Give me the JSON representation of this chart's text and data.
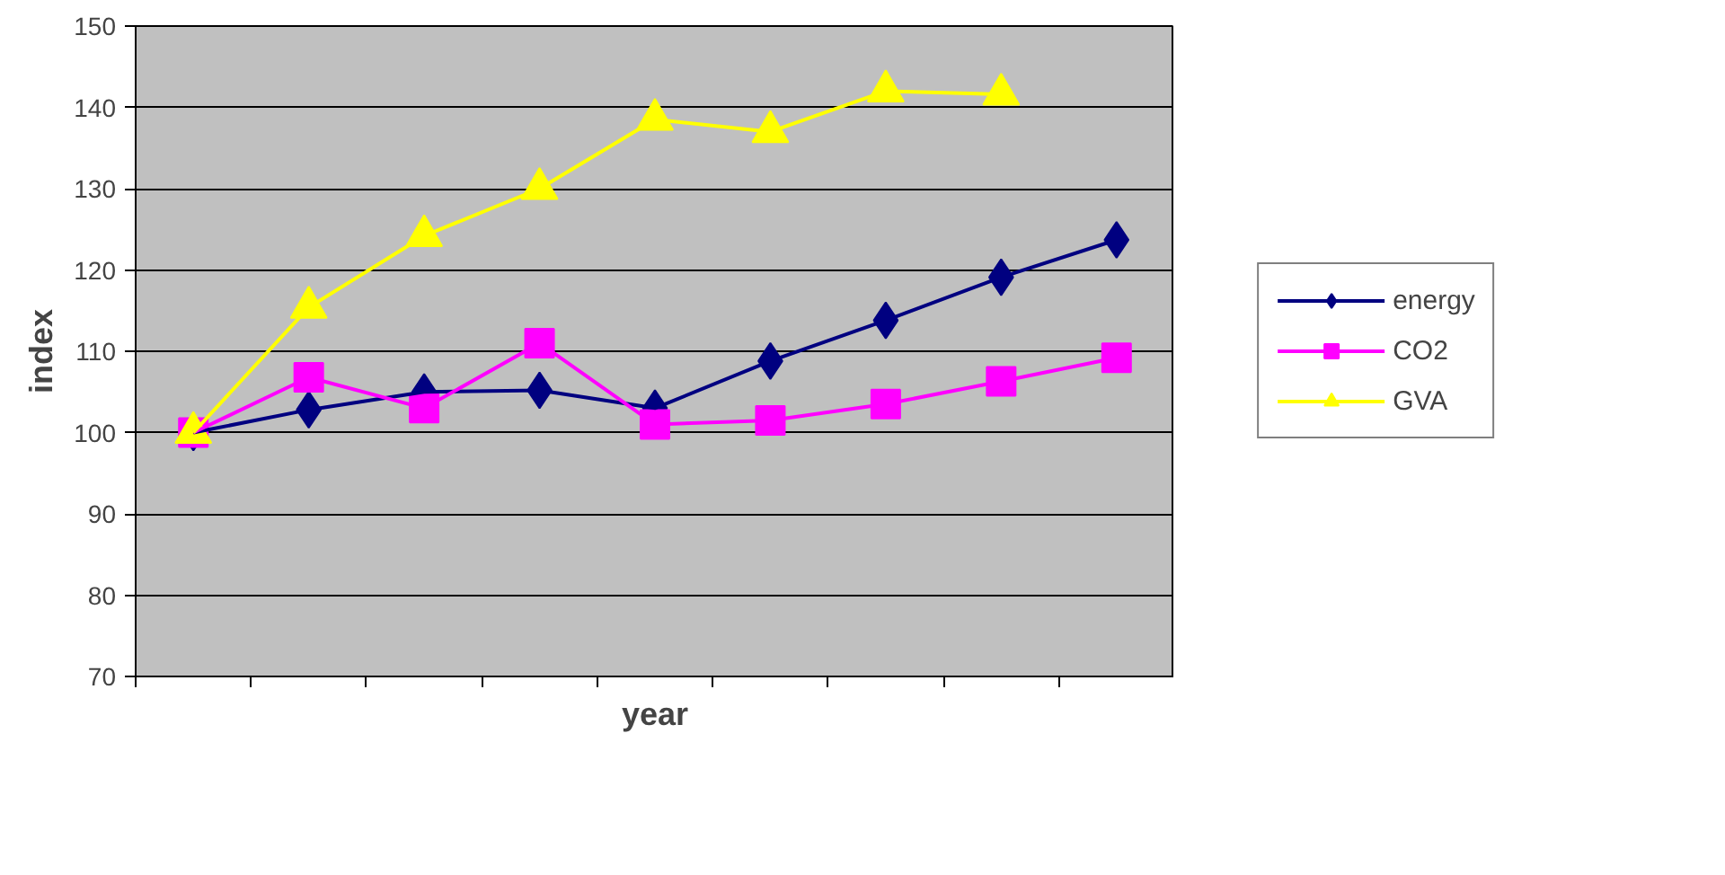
{
  "chart_data": {
    "type": "line",
    "xlabel": "year",
    "ylabel": "index",
    "categories": [
      null,
      null,
      null,
      null,
      null,
      null,
      null,
      null,
      null
    ],
    "series": [
      {
        "name": "energy",
        "color": "#000080",
        "marker": "diamond",
        "values": [
          100,
          102.8,
          105,
          105.2,
          103,
          108.8,
          113.8,
          119.1,
          123.7
        ]
      },
      {
        "name": "CO2",
        "color": "#ff00ff",
        "marker": "square",
        "values": [
          100,
          106.8,
          103,
          111,
          101,
          101.5,
          103.5,
          106.3,
          109.2
        ]
      },
      {
        "name": "GVA",
        "color": "#ffff00",
        "marker": "triangle",
        "values": [
          100,
          115.4,
          124.2,
          130,
          138.5,
          137,
          142,
          141.6,
          null
        ]
      }
    ],
    "ylim": [
      70,
      150
    ],
    "yticks": [
      70,
      80,
      90,
      100,
      110,
      120,
      130,
      140,
      150
    ],
    "grid": "y",
    "legend": "right",
    "line_style": "solid"
  }
}
